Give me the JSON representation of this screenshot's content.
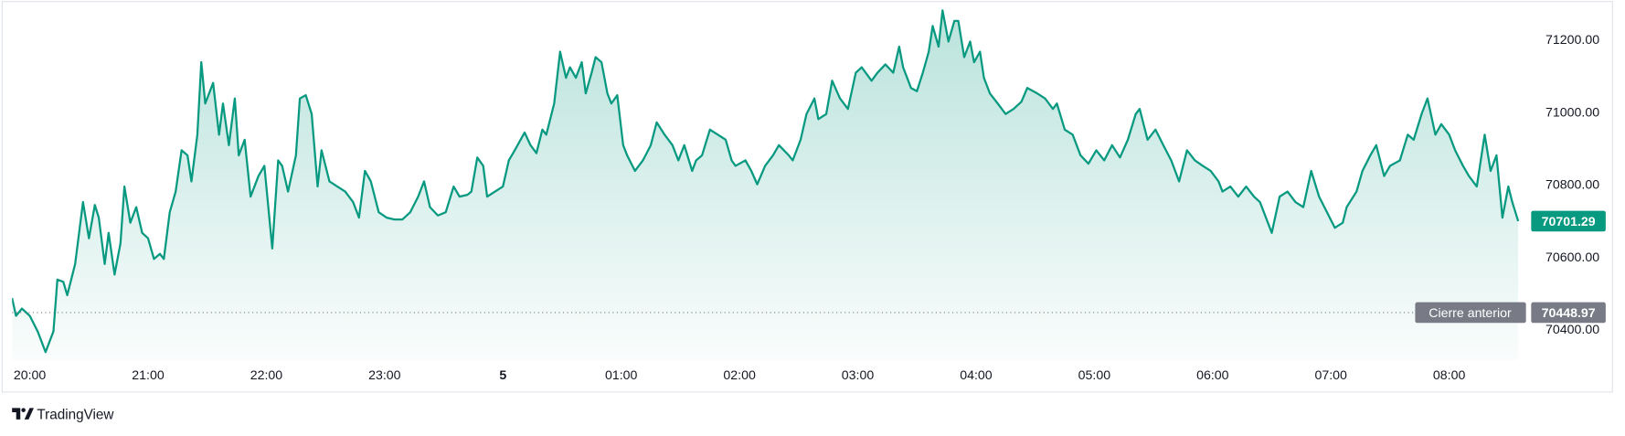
{
  "chart_data": {
    "type": "area",
    "branding": "TradingView",
    "xlim": [
      -9,
      760
    ],
    "ylim": [
      70317,
      71306
    ],
    "xticks": [
      {
        "value": 0,
        "label": "20:00"
      },
      {
        "value": 60,
        "label": "21:00"
      },
      {
        "value": 120,
        "label": "22:00"
      },
      {
        "value": 180,
        "label": "23:00"
      },
      {
        "value": 240,
        "label": "5"
      },
      {
        "value": 300,
        "label": "01:00"
      },
      {
        "value": 360,
        "label": "02:00"
      },
      {
        "value": 420,
        "label": "03:00"
      },
      {
        "value": 480,
        "label": "04:00"
      },
      {
        "value": 540,
        "label": "05:00"
      },
      {
        "value": 600,
        "label": "06:00"
      },
      {
        "value": 660,
        "label": "07:00"
      },
      {
        "value": 720,
        "label": "08:00"
      }
    ],
    "yticks": [
      {
        "value": 70400,
        "label": "70400.00"
      },
      {
        "value": 70600,
        "label": "70600.00"
      },
      {
        "value": 70800,
        "label": "70800.00"
      },
      {
        "value": 71000,
        "label": "71000.00"
      },
      {
        "value": 71200,
        "label": "71200.00"
      }
    ],
    "grid": false,
    "previous_close": {
      "label": "Cierre anterior",
      "value": 70448.97
    },
    "series": [
      {
        "color": "#089981",
        "x": [
          -9,
          -7,
          -4,
          0,
          4,
          8,
          12,
          14,
          17,
          19,
          23,
          27,
          30,
          33,
          35,
          38,
          40,
          43,
          46,
          48,
          51,
          54,
          57,
          60,
          63,
          66,
          68,
          71,
          74,
          77,
          80,
          82,
          85,
          87,
          89,
          93,
          96,
          98,
          101,
          104,
          106,
          109,
          112,
          116,
          119,
          123,
          126,
          128,
          131,
          135,
          137,
          140,
          143,
          146,
          148,
          152,
          156,
          160,
          164,
          167,
          170,
          173,
          177,
          181,
          185,
          189,
          193,
          197,
          200,
          203,
          207,
          211,
          215,
          218,
          222,
          224,
          227,
          230,
          232,
          236,
          240,
          243,
          246,
          251,
          254,
          257,
          260,
          262,
          266,
          269,
          272,
          274,
          277,
          280,
          282,
          285,
          287,
          290,
          293,
          295,
          298,
          301,
          303,
          307,
          311,
          315,
          318,
          322,
          326,
          329,
          332,
          336,
          338,
          341,
          345,
          349,
          353,
          356,
          358,
          363,
          366,
          369,
          373,
          377,
          380,
          385,
          387,
          391,
          394,
          398,
          400,
          404,
          407,
          411,
          415,
          419,
          422,
          427,
          430,
          434,
          438,
          441,
          443,
          447,
          450,
          453,
          456,
          458,
          461,
          463,
          466,
          469,
          471,
          474,
          477,
          479,
          482,
          484,
          487,
          491,
          495,
          499,
          503,
          506,
          511,
          515,
          519,
          521,
          525,
          529,
          533,
          537,
          541,
          545,
          549,
          553,
          557,
          561,
          563,
          567,
          571,
          575,
          579,
          583,
          587,
          591,
          595,
          599,
          603,
          605,
          609,
          613,
          617,
          621,
          624,
          626,
          630,
          634,
          638,
          642,
          646,
          650,
          654,
          658,
          662,
          666,
          668,
          673,
          676,
          680,
          683,
          687,
          690,
          695,
          699,
          702,
          706,
          709,
          713,
          716,
          720,
          723,
          727,
          730,
          734,
          738,
          741,
          744,
          747,
          750,
          752,
          755
        ],
        "values": [
          70489,
          70440,
          70460,
          70440,
          70397,
          70340,
          70397,
          70540,
          70534,
          70497,
          70583,
          70754,
          70654,
          70746,
          70711,
          70583,
          70669,
          70554,
          70640,
          70797,
          70697,
          70740,
          70669,
          70654,
          70597,
          70611,
          70597,
          70726,
          70783,
          70897,
          70883,
          70811,
          70940,
          71140,
          71026,
          71083,
          70940,
          71026,
          70911,
          71040,
          70883,
          70926,
          70769,
          70826,
          70854,
          70626,
          70869,
          70854,
          70783,
          70883,
          71040,
          71049,
          70997,
          70797,
          70897,
          70811,
          70797,
          70783,
          70754,
          70711,
          70840,
          70811,
          70726,
          70711,
          70706,
          70706,
          70726,
          70769,
          70811,
          70740,
          70717,
          70726,
          70797,
          70769,
          70774,
          70783,
          70877,
          70854,
          70769,
          70783,
          70797,
          70869,
          70897,
          70946,
          70911,
          70889,
          70954,
          70940,
          71026,
          71169,
          71097,
          71126,
          71097,
          71140,
          71054,
          71111,
          71154,
          71140,
          71054,
          71026,
          71049,
          70911,
          70883,
          70840,
          70869,
          70911,
          70974,
          70940,
          70911,
          70869,
          70911,
          70840,
          70869,
          70883,
          70954,
          70940,
          70926,
          70869,
          70854,
          70869,
          70840,
          70803,
          70854,
          70883,
          70911,
          70883,
          70869,
          70926,
          70997,
          71040,
          70983,
          70997,
          71089,
          71040,
          71011,
          71111,
          71126,
          71089,
          71111,
          71134,
          71111,
          71183,
          71126,
          71069,
          71060,
          71111,
          71169,
          71240,
          71183,
          71283,
          71197,
          71254,
          71254,
          71154,
          71197,
          71140,
          71169,
          71097,
          71054,
          71026,
          70997,
          71011,
          71031,
          71069,
          71054,
          71040,
          71011,
          71026,
          70954,
          70940,
          70883,
          70860,
          70897,
          70869,
          70911,
          70877,
          70926,
          70997,
          71011,
          70926,
          70954,
          70911,
          70869,
          70811,
          70897,
          70869,
          70854,
          70840,
          70811,
          70783,
          70797,
          70769,
          70797,
          70769,
          70754,
          70726,
          70669,
          70769,
          70783,
          70754,
          70740,
          70840,
          70769,
          70726,
          70683,
          70697,
          70740,
          70783,
          70840,
          70883,
          70911,
          70826,
          70854,
          70869,
          70940,
          70926,
          70997,
          71040,
          70940,
          70969,
          70940,
          70897,
          70854,
          70826,
          70797,
          70940,
          70840,
          70883,
          70711,
          70797,
          70754,
          70701.29
        ]
      }
    ]
  }
}
